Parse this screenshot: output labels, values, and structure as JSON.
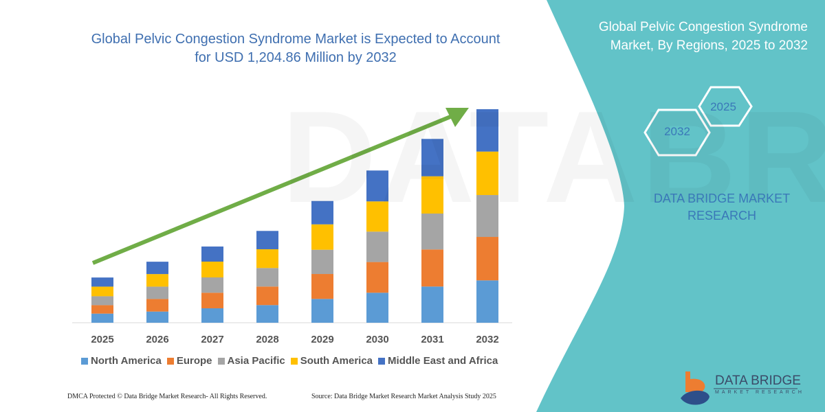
{
  "header": {
    "title": "Global Pelvic Congestion Syndrome Market is Expected to Account for USD 1,204.86 Million by 2032"
  },
  "side_panel": {
    "title": "Global Pelvic Congestion Syndrome Market, By Regions, 2025 to 2032",
    "hex_start": "2025",
    "hex_end": "2032",
    "brand": "DATA BRIDGE MARKET RESEARCH",
    "logo_text": "DATA BRIDGE",
    "logo_sub": "MARKET RESEARCH",
    "color": "#62C3C8"
  },
  "footer": {
    "left": "DMCA Protected © Data Bridge Market Research-  All Rights Reserved.",
    "right": "Source: Data Bridge Market Research  Market Analysis Study 2025"
  },
  "chart_data": {
    "type": "bar",
    "stacked": true,
    "title": "Global Pelvic Congestion Syndrome Market is Expected to Account for USD 1,204.86 Million by 2032",
    "categories": [
      "2025",
      "2026",
      "2027",
      "2028",
      "2029",
      "2030",
      "2031",
      "2032"
    ],
    "ylim": [
      0,
      1250
    ],
    "grid": false,
    "legend": "bottom",
    "trend_arrow": true,
    "series": [
      {
        "name": "North America",
        "color": "#5B9BD5",
        "values": [
          51.5,
          63.1,
          81.4,
          99.6,
          134.4,
          169.3,
          204.2,
          239.0
        ]
      },
      {
        "name": "Europe",
        "color": "#ED7D31",
        "values": [
          47.6,
          70.9,
          87.9,
          104.6,
          140.6,
          173.2,
          209.2,
          245.2
        ]
      },
      {
        "name": "Asia Pacific",
        "color": "#A5A5A5",
        "values": [
          50.4,
          69.7,
          86.4,
          104.6,
          136.8,
          171.6,
          202.6,
          236.3
        ]
      },
      {
        "name": "South America",
        "color": "#FFC000",
        "values": [
          54.2,
          70.9,
          89.1,
          105.8,
          143.3,
          170.5,
          210.4,
          245.2
        ]
      },
      {
        "name": "Middle East and Africa",
        "color": "#4472C4",
        "values": [
          51.5,
          69.7,
          85.2,
          103.4,
          131.7,
          174.3,
          210.7,
          239.0
        ]
      }
    ]
  }
}
